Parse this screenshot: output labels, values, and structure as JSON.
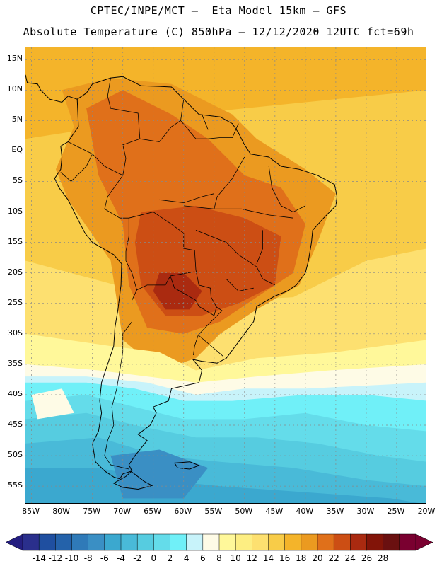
{
  "title": {
    "line1": "CPTEC/INPE/MCT –  Eta Model 15km – GFS",
    "line2": "Absolute Temperature (C) 850hPa – 12/12/2020 12UTC fct=69h"
  },
  "map": {
    "region": "South America",
    "lat_range": [
      -58,
      17
    ],
    "lon_range": [
      -86,
      -20
    ],
    "lat_ticks": [
      {
        "value": 15,
        "label": "15N"
      },
      {
        "value": 10,
        "label": "10N"
      },
      {
        "value": 5,
        "label": "5N"
      },
      {
        "value": 0,
        "label": "EQ"
      },
      {
        "value": -5,
        "label": "5S"
      },
      {
        "value": -10,
        "label": "10S"
      },
      {
        "value": -15,
        "label": "15S"
      },
      {
        "value": -20,
        "label": "20S"
      },
      {
        "value": -25,
        "label": "25S"
      },
      {
        "value": -30,
        "label": "30S"
      },
      {
        "value": -35,
        "label": "35S"
      },
      {
        "value": -40,
        "label": "40S"
      },
      {
        "value": -45,
        "label": "45S"
      },
      {
        "value": -50,
        "label": "50S"
      },
      {
        "value": -55,
        "label": "55S"
      }
    ],
    "lon_ticks": [
      {
        "value": -85,
        "label": "85W"
      },
      {
        "value": -80,
        "label": "80W"
      },
      {
        "value": -75,
        "label": "75W"
      },
      {
        "value": -70,
        "label": "70W"
      },
      {
        "value": -65,
        "label": "65W"
      },
      {
        "value": -60,
        "label": "60W"
      },
      {
        "value": -55,
        "label": "55W"
      },
      {
        "value": -50,
        "label": "50W"
      },
      {
        "value": -45,
        "label": "45W"
      },
      {
        "value": -40,
        "label": "40W"
      },
      {
        "value": -35,
        "label": "35W"
      },
      {
        "value": -30,
        "label": "30W"
      },
      {
        "value": -25,
        "label": "25W"
      },
      {
        "value": -20,
        "label": "20W"
      }
    ]
  },
  "colorbar": {
    "labels": [
      "-14",
      "-12",
      "-10",
      "-8",
      "-6",
      "-4",
      "-2",
      "0",
      "2",
      "4",
      "6",
      "8",
      "10",
      "12",
      "14",
      "16",
      "18",
      "20",
      "22",
      "24",
      "26",
      "28"
    ],
    "colors": [
      "#2a2f8c",
      "#1f4fa0",
      "#2462aa",
      "#2f7ab8",
      "#3a8fc4",
      "#3ba8cf",
      "#49bad8",
      "#56cce0",
      "#64dcea",
      "#70f0f8",
      "#c8f3fa",
      "#fefbe6",
      "#fff89a",
      "#fdee82",
      "#fde070",
      "#f8cc48",
      "#f4b42a",
      "#eb9a20",
      "#e0701a",
      "#cc4e14",
      "#aa2a10",
      "#821408",
      "#6a1010",
      "#7a0030"
    ],
    "under_color": "#241e80",
    "over_color": "#7a0030"
  },
  "field_colors": {
    "ocean_north": "#f4b42a",
    "ocean_mid": "#f8cc48",
    "ocean_warm_south": "#fde070",
    "land_warm": "#eb9a20",
    "land_hot": "#e0701a",
    "land_hottest": "#cc4e14",
    "core": "#aa2a10",
    "cool_front": "#fff89a",
    "pale": "#fefbe6",
    "light_blue": "#c8f3fa",
    "cyan": "#70f0f8",
    "cyan2": "#64dcea",
    "blue1": "#56cce0",
    "blue2": "#49bad8",
    "blue3": "#3ba8cf",
    "blue4": "#3a8fc4"
  }
}
